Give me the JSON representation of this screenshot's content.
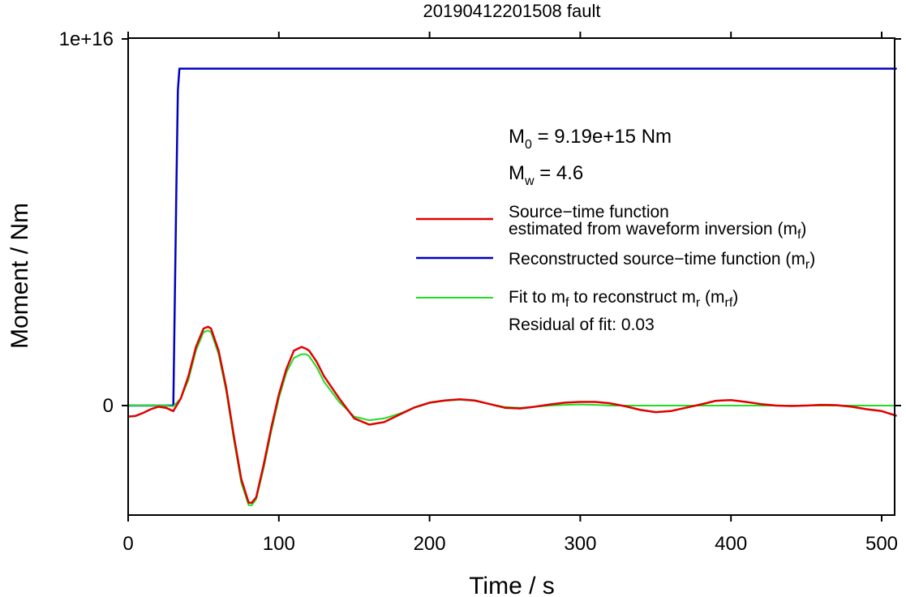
{
  "chart_data": {
    "type": "line",
    "title": "20190412201508 fault",
    "xlabel": "Time / s",
    "ylabel": "Moment / Nm",
    "xlim": [
      0,
      510
    ],
    "ylim": [
      -3000000000000000.0,
      1e+16
    ],
    "x_ticks": [
      0,
      100,
      200,
      300,
      400,
      500
    ],
    "x_tick_labels": [
      "0",
      "100",
      "200",
      "300",
      "400",
      "500"
    ],
    "y_ticks": [
      0,
      1e+16
    ],
    "y_tick_labels": [
      "0",
      "1e+16"
    ],
    "grid": false,
    "legend_position": "right",
    "annotations": {
      "m0": {
        "main": "M",
        "sub": "0",
        "rest": " = 9.19e+15 Nm"
      },
      "mw": {
        "main": "M",
        "sub": "w",
        "rest": " = 4.6"
      },
      "residual": "Residual of fit: 0.03"
    },
    "legend": [
      {
        "key": "mf",
        "color": "#e00000",
        "line1": "Source−time function",
        "line2_pre": "estimated from waveform inversion (m",
        "line2_sub": "f",
        "line2_post": ")"
      },
      {
        "key": "mr",
        "color": "#0000c0",
        "line1_pre": "Reconstructed source−time function (m",
        "line1_sub": "r",
        "line1_post": ")"
      },
      {
        "key": "mrf",
        "color": "#22dd22",
        "p1": "Fit to m",
        "s1": "f",
        "p2": " to reconstruct m",
        "s2": "r",
        "p3": " (m",
        "s3": "rf",
        "p4": ")"
      }
    ],
    "series": [
      {
        "key": "mf",
        "color": "#e00000",
        "x": [
          0,
          5,
          10,
          15,
          20,
          25,
          30,
          35,
          40,
          45,
          50,
          53,
          55,
          60,
          65,
          70,
          75,
          80,
          82,
          85,
          90,
          95,
          100,
          105,
          110,
          115,
          118,
          120,
          125,
          130,
          140,
          150,
          160,
          170,
          180,
          190,
          200,
          210,
          220,
          230,
          240,
          250,
          260,
          270,
          280,
          290,
          300,
          310,
          320,
          330,
          340,
          350,
          360,
          370,
          380,
          390,
          400,
          410,
          420,
          430,
          440,
          450,
          460,
          470,
          480,
          490,
          500,
          510
        ],
        "y": [
          -300000000000000.0,
          -280000000000000.0,
          -200000000000000.0,
          -100000000000000.0,
          -30000000000000.0,
          -60000000000000.0,
          -150000000000000.0,
          200000000000000.0,
          800000000000000.0,
          1600000000000000.0,
          2100000000000000.0,
          2150000000000000.0,
          2100000000000000.0,
          1500000000000000.0,
          500000000000000.0,
          -800000000000000.0,
          -2000000000000000.0,
          -2650000000000000.0,
          -2650000000000000.0,
          -2500000000000000.0,
          -1600000000000000.0,
          -600000000000000.0,
          300000000000000.0,
          1000000000000000.0,
          1500000000000000.0,
          1600000000000000.0,
          1550000000000000.0,
          1500000000000000.0,
          1200000000000000.0,
          800000000000000.0,
          200000000000000.0,
          -350000000000000.0,
          -520000000000000.0,
          -450000000000000.0,
          -250000000000000.0,
          -50000000000000.0,
          80000000000000.0,
          140000000000000.0,
          170000000000000.0,
          140000000000000.0,
          40000000000000.0,
          -60000000000000.0,
          -80000000000000.0,
          -30000000000000.0,
          30000000000000.0,
          80000000000000.0,
          100000000000000.0,
          100000000000000.0,
          60000000000000.0,
          -20000000000000.0,
          -120000000000000.0,
          -180000000000000.0,
          -150000000000000.0,
          -60000000000000.0,
          30000000000000.0,
          130000000000000.0,
          150000000000000.0,
          100000000000000.0,
          40000000000000.0,
          0,
          -10000000000000.0,
          0,
          20000000000000.0,
          10000000000000.0,
          -30000000000000.0,
          -100000000000000.0,
          -150000000000000.0,
          -280000000000000.0
        ]
      },
      {
        "key": "mr",
        "color": "#0000c0",
        "x": [
          0,
          30,
          31,
          32,
          33,
          34,
          35,
          510
        ],
        "y": [
          0,
          0,
          3000000000000000.0,
          6000000000000000.0,
          8600000000000000.0,
          9190000000000000.0,
          9190000000000000.0,
          9190000000000000.0
        ]
      },
      {
        "key": "mrf",
        "color": "#22dd22",
        "x": [
          0,
          5,
          10,
          15,
          20,
          25,
          30,
          35,
          40,
          45,
          50,
          53,
          55,
          60,
          65,
          70,
          75,
          80,
          82,
          85,
          90,
          95,
          100,
          105,
          110,
          115,
          118,
          120,
          125,
          130,
          140,
          150,
          160,
          170,
          180,
          190,
          200,
          210,
          220,
          230,
          240,
          250,
          260,
          270,
          280,
          290,
          300,
          310,
          320,
          510
        ],
        "y": [
          0,
          0,
          0,
          0,
          0,
          0,
          -20000000000000.0,
          200000000000000.0,
          700000000000000.0,
          1500000000000000.0,
          2000000000000000.0,
          2050000000000000.0,
          2000000000000000.0,
          1400000000000000.0,
          400000000000000.0,
          -900000000000000.0,
          -2100000000000000.0,
          -2720000000000000.0,
          -2720000000000000.0,
          -2550000000000000.0,
          -1700000000000000.0,
          -700000000000000.0,
          200000000000000.0,
          900000000000000.0,
          1300000000000000.0,
          1400000000000000.0,
          1400000000000000.0,
          1350000000000000.0,
          1050000000000000.0,
          650000000000000.0,
          100000000000000.0,
          -300000000000000.0,
          -400000000000000.0,
          -350000000000000.0,
          -220000000000000.0,
          -60000000000000.0,
          70000000000000.0,
          130000000000000.0,
          160000000000000.0,
          130000000000000.0,
          40000000000000.0,
          -40000000000000.0,
          -60000000000000.0,
          -30000000000000.0,
          0,
          20000000000000.0,
          30000000000000.0,
          20000000000000.0,
          0,
          0
        ]
      }
    ]
  }
}
